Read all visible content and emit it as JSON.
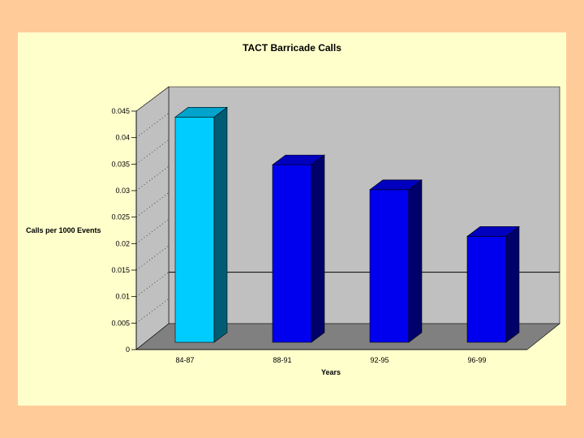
{
  "chart_data": {
    "type": "bar",
    "title": "TACT Barricade Calls",
    "xlabel": "Years",
    "ylabel": "Calls per 1000 Events",
    "categories": [
      "84-87",
      "88-91",
      "92-95",
      "96-99"
    ],
    "values": [
      0.0425,
      0.0335,
      0.0288,
      0.02
    ],
    "ylim": [
      0,
      0.045
    ],
    "yticks": [
      "0",
      "0.005",
      "0.01",
      "0.015",
      "0.02",
      "0.025",
      "0.03",
      "0.035",
      "0.04",
      "0.045"
    ],
    "grid": false,
    "legend": "none",
    "style": "3d",
    "colors": {
      "highlight_bar": "#00ccff",
      "bar": "#0000ee",
      "wall": "#c0c0c0",
      "floor": "#808080"
    },
    "annotation": {
      "reference_line_y": 0.01
    }
  }
}
